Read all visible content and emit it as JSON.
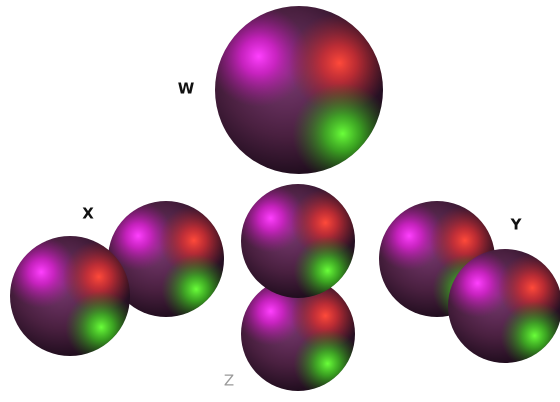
{
  "labels": {
    "w": "W",
    "x": "X",
    "y": "Y",
    "z": "Z"
  }
}
